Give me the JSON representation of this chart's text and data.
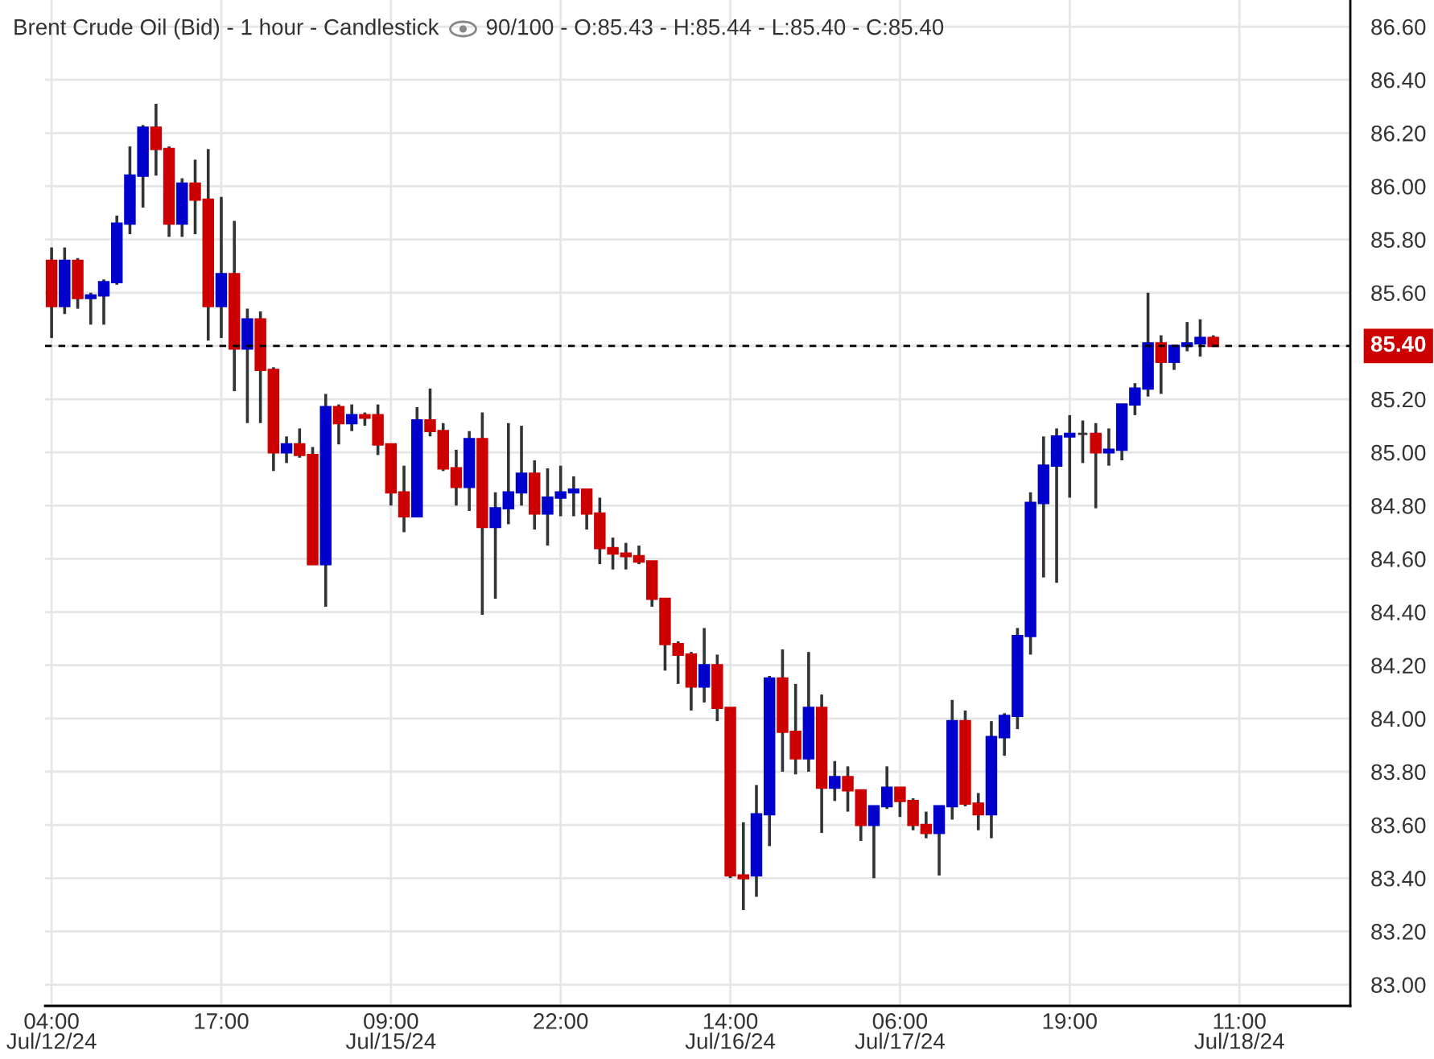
{
  "chart_data": {
    "type": "candlestick",
    "title": "Brent Crude Oil (Bid) - 1 hour - Candlestick",
    "subtitle": "90/100 - O:85.43 - H:85.44 - L:85.40 - C:85.40",
    "categories": [
      "04:00\nJul/12/24",
      null,
      null,
      null,
      null,
      null,
      null,
      null,
      null,
      null,
      null,
      null,
      null,
      "17:00",
      null,
      null,
      null,
      null,
      null,
      null,
      null,
      null,
      null,
      null,
      null,
      null,
      "09:00\nJul/15/24",
      null,
      null,
      null,
      null,
      null,
      null,
      null,
      null,
      null,
      null,
      null,
      null,
      "22:00",
      null,
      null,
      null,
      null,
      null,
      null,
      null,
      null,
      null,
      null,
      null,
      null,
      "14:00\nJul/16/24",
      null,
      null,
      null,
      null,
      null,
      null,
      null,
      null,
      null,
      null,
      null,
      null,
      "06:00\nJul/17/24",
      null,
      null,
      null,
      null,
      null,
      null,
      null,
      null,
      null,
      null,
      null,
      null,
      "19:00",
      null,
      null,
      null,
      null,
      null,
      null,
      null,
      null,
      null,
      null,
      null,
      null,
      "11:00\nJul/18/24",
      null,
      null,
      null,
      null,
      null,
      null,
      null,
      null
    ],
    "ohlc": [
      [
        85.72,
        85.77,
        85.43,
        85.55
      ],
      [
        85.55,
        85.77,
        85.52,
        85.72
      ],
      [
        85.72,
        85.73,
        85.54,
        85.58
      ],
      [
        85.58,
        85.6,
        85.48,
        85.59
      ],
      [
        85.59,
        85.65,
        85.48,
        85.64
      ],
      [
        85.64,
        85.89,
        85.63,
        85.86
      ],
      [
        85.86,
        86.15,
        85.82,
        86.04
      ],
      [
        86.04,
        86.23,
        85.92,
        86.22
      ],
      [
        86.22,
        86.31,
        86.04,
        86.14
      ],
      [
        86.14,
        86.15,
        85.81,
        85.86
      ],
      [
        85.86,
        86.03,
        85.81,
        86.01
      ],
      [
        86.01,
        86.1,
        85.82,
        85.95
      ],
      [
        85.95,
        86.14,
        85.42,
        85.55
      ],
      [
        85.55,
        85.96,
        85.43,
        85.67
      ],
      [
        85.67,
        85.87,
        85.23,
        85.39
      ],
      [
        85.39,
        85.54,
        85.11,
        85.5
      ],
      [
        85.5,
        85.53,
        85.11,
        85.31
      ],
      [
        85.31,
        85.32,
        84.93,
        85.0
      ],
      [
        85.0,
        85.06,
        84.96,
        85.03
      ],
      [
        85.03,
        85.09,
        84.98,
        84.99
      ],
      [
        84.99,
        85.02,
        84.58,
        84.58
      ],
      [
        84.58,
        85.22,
        84.42,
        85.17
      ],
      [
        85.17,
        85.18,
        85.03,
        85.11
      ],
      [
        85.11,
        85.18,
        85.08,
        85.14
      ],
      [
        85.14,
        85.15,
        85.1,
        85.13
      ],
      [
        85.14,
        85.18,
        84.99,
        85.03
      ],
      [
        85.03,
        85.03,
        84.8,
        84.85
      ],
      [
        84.85,
        84.95,
        84.7,
        84.76
      ],
      [
        84.76,
        85.17,
        84.76,
        85.12
      ],
      [
        85.12,
        85.24,
        85.06,
        85.08
      ],
      [
        85.08,
        85.11,
        84.93,
        84.94
      ],
      [
        84.94,
        85.01,
        84.8,
        84.87
      ],
      [
        84.87,
        85.08,
        84.78,
        85.05
      ],
      [
        85.05,
        85.15,
        84.39,
        84.72
      ],
      [
        84.72,
        84.85,
        84.45,
        84.79
      ],
      [
        84.79,
        85.11,
        84.73,
        84.85
      ],
      [
        84.85,
        85.1,
        84.8,
        84.92
      ],
      [
        84.92,
        84.97,
        84.71,
        84.77
      ],
      [
        84.77,
        84.94,
        84.65,
        84.83
      ],
      [
        84.83,
        84.95,
        84.76,
        84.85
      ],
      [
        84.85,
        84.91,
        84.76,
        84.86
      ],
      [
        84.86,
        84.86,
        84.71,
        84.77
      ],
      [
        84.77,
        84.83,
        84.58,
        84.64
      ],
      [
        84.64,
        84.68,
        84.56,
        84.62
      ],
      [
        84.62,
        84.66,
        84.56,
        84.61
      ],
      [
        84.61,
        84.65,
        84.58,
        84.59
      ],
      [
        84.59,
        84.59,
        84.42,
        84.45
      ],
      [
        84.45,
        84.45,
        84.18,
        84.28
      ],
      [
        84.28,
        84.29,
        84.13,
        84.24
      ],
      [
        84.24,
        84.25,
        84.03,
        84.12
      ],
      [
        84.12,
        84.34,
        84.06,
        84.2
      ],
      [
        84.2,
        84.24,
        83.99,
        84.04
      ],
      [
        84.04,
        84.04,
        83.4,
        83.41
      ],
      [
        83.41,
        83.61,
        83.28,
        83.4
      ],
      [
        83.41,
        83.75,
        83.33,
        83.64
      ],
      [
        83.64,
        84.16,
        83.52,
        84.15
      ],
      [
        84.15,
        84.26,
        83.8,
        83.95
      ],
      [
        83.95,
        84.13,
        83.79,
        83.85
      ],
      [
        83.85,
        84.25,
        83.8,
        84.04
      ],
      [
        84.04,
        84.09,
        83.57,
        83.74
      ],
      [
        83.74,
        83.84,
        83.69,
        83.78
      ],
      [
        83.78,
        83.82,
        83.65,
        83.73
      ],
      [
        83.73,
        83.73,
        83.54,
        83.6
      ],
      [
        83.6,
        83.67,
        83.4,
        83.67
      ],
      [
        83.67,
        83.82,
        83.66,
        83.74
      ],
      [
        83.74,
        83.74,
        83.63,
        83.69
      ],
      [
        83.69,
        83.7,
        83.58,
        83.6
      ],
      [
        83.6,
        83.65,
        83.55,
        83.57
      ],
      [
        83.57,
        83.67,
        83.41,
        83.67
      ],
      [
        83.67,
        84.07,
        83.62,
        83.99
      ],
      [
        83.99,
        84.03,
        83.67,
        83.68
      ],
      [
        83.68,
        83.72,
        83.58,
        83.64
      ],
      [
        83.64,
        83.99,
        83.55,
        83.93
      ],
      [
        83.93,
        84.02,
        83.86,
        84.01
      ],
      [
        84.01,
        84.34,
        83.96,
        84.31
      ],
      [
        84.31,
        84.85,
        84.24,
        84.81
      ],
      [
        84.81,
        85.06,
        84.53,
        84.95
      ],
      [
        84.95,
        85.09,
        84.51,
        85.06
      ],
      [
        85.06,
        85.14,
        84.83,
        85.07
      ],
      [
        85.07,
        85.12,
        84.96,
        85.07
      ],
      [
        85.07,
        85.11,
        84.79,
        85.0
      ],
      [
        85.0,
        85.09,
        84.95,
        85.01
      ],
      [
        85.01,
        85.18,
        84.97,
        85.18
      ],
      [
        85.18,
        85.26,
        85.14,
        85.24
      ],
      [
        85.24,
        85.6,
        85.21,
        85.41
      ],
      [
        85.41,
        85.44,
        85.22,
        85.34
      ],
      [
        85.34,
        85.4,
        85.31,
        85.4
      ],
      [
        85.4,
        85.49,
        85.38,
        85.41
      ],
      [
        85.41,
        85.5,
        85.36,
        85.43
      ],
      [
        85.43,
        85.44,
        85.4,
        85.4
      ],
      null,
      null,
      null,
      null,
      null,
      null,
      null,
      null,
      null,
      null
    ],
    "colors": [
      "#cc0000",
      "#0000cc",
      "#cc0000",
      "#0000cc",
      "#0000cc",
      "#0000cc",
      "#0000cc",
      "#0000cc",
      "#cc0000",
      "#cc0000",
      "#0000cc",
      "#cc0000",
      "#cc0000",
      "#0000cc",
      "#cc0000",
      "#0000cc",
      "#cc0000",
      "#cc0000",
      "#0000cc",
      "#cc0000",
      "#cc0000",
      "#0000cc",
      "#cc0000",
      "#0000cc",
      "#cc0000",
      "#cc0000",
      "#cc0000",
      "#cc0000",
      "#0000cc",
      "#cc0000",
      "#cc0000",
      "#cc0000",
      "#0000cc",
      "#cc0000",
      "#0000cc",
      "#0000cc",
      "#0000cc",
      "#cc0000",
      "#0000cc",
      "#0000cc",
      "#0000cc",
      "#cc0000",
      "#cc0000",
      "#cc0000",
      "#cc0000",
      "#cc0000",
      "#cc0000",
      "#cc0000",
      "#cc0000",
      "#cc0000",
      "#0000cc",
      "#cc0000",
      "#cc0000",
      "#cc0000",
      "#0000cc",
      "#0000cc",
      "#cc0000",
      "#cc0000",
      "#0000cc",
      "#cc0000",
      "#0000cc",
      "#cc0000",
      "#cc0000",
      "#0000cc",
      "#0000cc",
      "#cc0000",
      "#cc0000",
      "#cc0000",
      "#0000cc",
      "#0000cc",
      "#cc0000",
      "#cc0000",
      "#0000cc",
      "#0000cc",
      "#0000cc",
      "#0000cc",
      "#0000cc",
      "#0000cc",
      "#0000cc",
      "#333333",
      "#cc0000",
      "#0000cc",
      "#0000cc",
      "#0000cc",
      "#0000cc",
      "#cc0000",
      "#0000cc",
      "#0000cc",
      "#0000cc",
      "#cc0000",
      null,
      null,
      null,
      null,
      null,
      null,
      null,
      null,
      null,
      null
    ],
    "ylim": [
      82.92,
      86.7
    ],
    "yticks": [
      {
        "value": 83.0,
        "label": "83.00"
      },
      {
        "value": 83.2,
        "label": "83.20"
      },
      {
        "value": 83.4,
        "label": "83.40"
      },
      {
        "value": 83.6,
        "label": "83.60"
      },
      {
        "value": 83.8,
        "label": "83.80"
      },
      {
        "value": 84.0,
        "label": "84.00"
      },
      {
        "value": 84.2,
        "label": "84.20"
      },
      {
        "value": 84.4,
        "label": "84.40"
      },
      {
        "value": 84.6,
        "label": "84.60"
      },
      {
        "value": 84.8,
        "label": "84.80"
      },
      {
        "value": 85.0,
        "label": "85.00"
      },
      {
        "value": 85.2,
        "label": "85.20"
      },
      {
        "value": 85.4,
        "label": null
      },
      {
        "value": 85.6,
        "label": "85.60"
      },
      {
        "value": 85.8,
        "label": "85.80"
      },
      {
        "value": 86.0,
        "label": "86.00"
      },
      {
        "value": 86.2,
        "label": "86.20"
      },
      {
        "value": 86.4,
        "label": "86.40"
      },
      {
        "value": 86.6,
        "label": "86.60"
      }
    ],
    "ref_lines": [
      {
        "axis": "y",
        "value": 85.4,
        "label": "85.40",
        "color": "#000000",
        "line_style": "dashed"
      }
    ],
    "grid": true
  }
}
